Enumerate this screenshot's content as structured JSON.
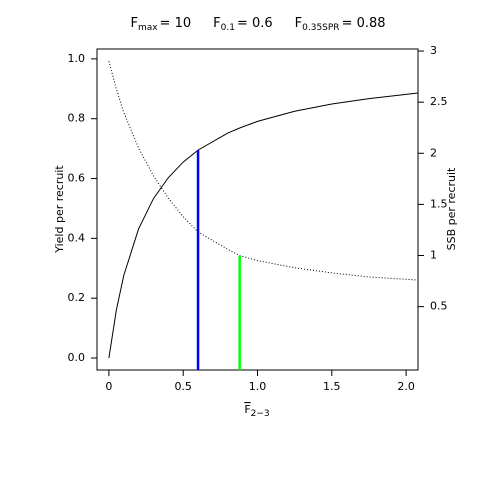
{
  "chart_data": {
    "type": "line",
    "title": [
      {
        "base": "F",
        "subscript": "max",
        "text": "= 10"
      },
      {
        "base": "F",
        "subscript": "0.1",
        "text": "= 0.6"
      },
      {
        "base": "F",
        "subscript": "0.35SPR",
        "text": "= 0.88"
      }
    ],
    "x_label": {
      "base": "F",
      "subscript": "2−3"
    },
    "y_label": "Yield per recruit",
    "y2_label": "SSB per recruit",
    "x": [
      0,
      0.05,
      0.1,
      0.2,
      0.3,
      0.4,
      0.5,
      0.6,
      0.8,
      0.88,
      1.0,
      1.25,
      1.5,
      1.75,
      2.08
    ],
    "series": [
      {
        "name": "Yield per recruit",
        "color": "#000000",
        "style": "solid",
        "values": [
          0,
          0.16,
          0.276,
          0.432,
          0.533,
          0.603,
          0.655,
          0.695,
          0.752,
          0.769,
          0.791,
          0.825,
          0.849,
          0.867,
          0.886
        ]
      },
      {
        "name": "SSB per recruit",
        "color": "#000000",
        "style": "dotted",
        "axis": "y2",
        "values": [
          2.9,
          2.63,
          2.4,
          2.05,
          1.78,
          1.56,
          1.38,
          1.23,
          1.06,
          1.0,
          0.95,
          0.88,
          0.83,
          0.79,
          0.76
        ]
      }
    ],
    "reference_lines": [
      {
        "x": 0.6,
        "top": 0.695,
        "color": "#0000ff"
      },
      {
        "x": 0.88,
        "top": 1.0,
        "axis": "y2",
        "color": "#00ff00"
      }
    ],
    "xlim": [
      -0.08,
      2.08
    ],
    "ylim": [
      -0.04,
      1.033
    ],
    "y2lim": [
      -0.12,
      3.02
    ],
    "xticks": [
      0,
      0.5,
      {
        "value": 1,
        "label": "1.0"
      },
      1.5,
      {
        "value": 2,
        "label": "2.0"
      }
    ],
    "yticks": [
      {
        "value": 0,
        "label": "0.0"
      },
      0.2,
      0.4,
      0.6,
      0.8,
      {
        "value": 1,
        "label": "1.0"
      }
    ],
    "y2ticks": [
      0.5,
      1,
      1.5,
      2,
      2.5,
      3
    ]
  }
}
